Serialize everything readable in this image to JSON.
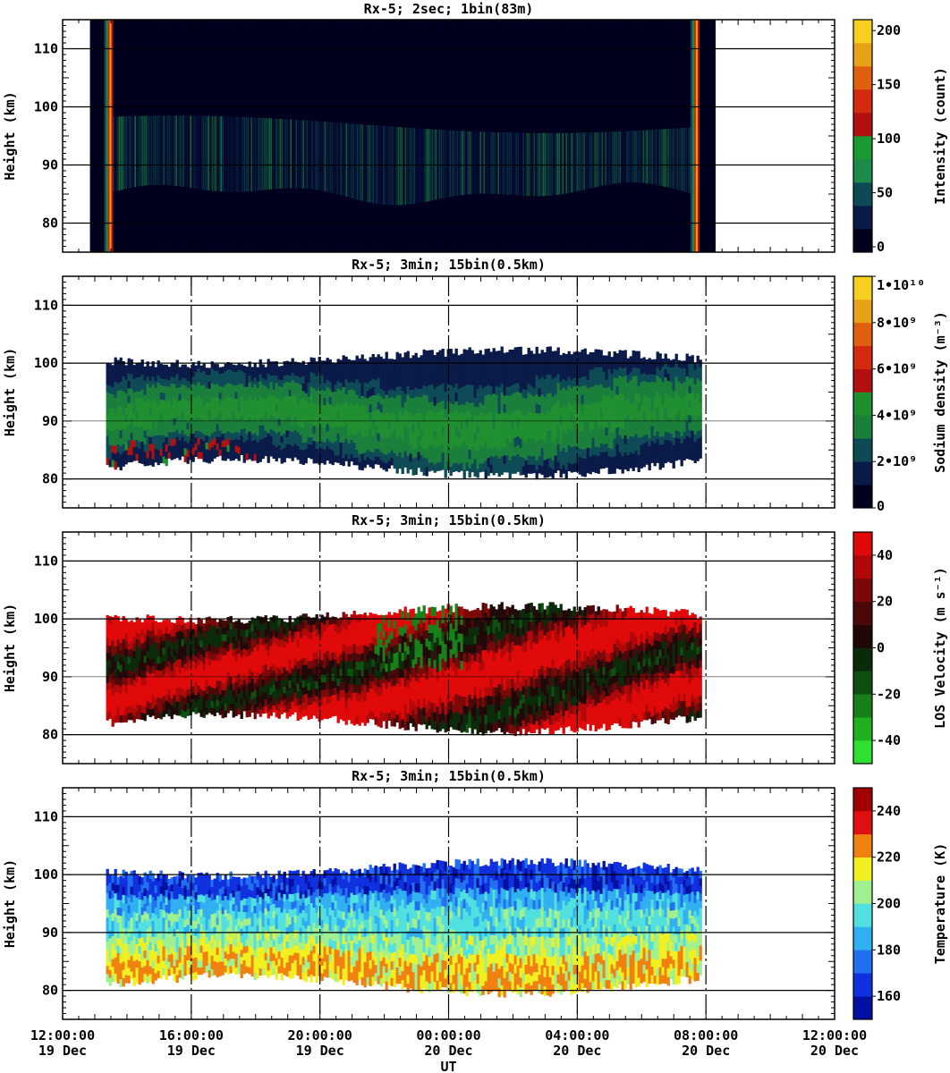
{
  "chart_data": [
    {
      "type": "heatmap",
      "title": "Rx-5;  2sec; 1bin(83m)",
      "ylabel": "Height (km)",
      "xlabel": "",
      "ylim": [
        75,
        115
      ],
      "xlim_hours": [
        12,
        36
      ],
      "yticks": [
        80,
        90,
        100,
        110
      ],
      "xticks": [
        "12:00:00|19 Dec",
        "16:00:00|19 Dec",
        "20:00:00|19 Dec",
        "00:00:00|20 Dec",
        "04:00:00|20 Dec",
        "08:00:00|20 Dec",
        "12:00:00|20 Dec"
      ],
      "grid": "horizontal",
      "colorbar": {
        "label": "Intensity (count)",
        "min": 0,
        "max": 200,
        "ticks": [
          "0",
          "50",
          "100",
          "150",
          "200"
        ],
        "colors": [
          "#00001e",
          "#0a1a48",
          "#0e4a55",
          "#1c8a48",
          "#1a9a30",
          "#b01010",
          "#d42a10",
          "#e06010",
          "#e8a018",
          "#f5d020"
        ]
      },
      "observation": {
        "start_hour": 13.35,
        "end_hour": 31.8,
        "layer_bottom_km": 85,
        "layer_top_km": 97
      }
    },
    {
      "type": "heatmap",
      "title": "Rx-5; 3min; 15bin(0.5km)",
      "ylabel": "Height (km)",
      "xlabel": "",
      "ylim": [
        75,
        115
      ],
      "yticks": [
        80,
        90,
        100,
        110
      ],
      "grid": "horizontal+vertical-dashed",
      "colorbar": {
        "label": "Sodium density (m⁻³)",
        "min": 0,
        "max": 10000000000.0,
        "ticks": [
          {
            "v": 0,
            "t": "0"
          },
          {
            "v": 0.2,
            "t": "2•10⁹"
          },
          {
            "v": 0.4,
            "t": "4•10⁹"
          },
          {
            "v": 0.6,
            "t": "6•10⁹"
          },
          {
            "v": 0.8,
            "t": "8•10⁹"
          },
          {
            "v": 1.0,
            "t": "1•10¹⁰"
          }
        ],
        "colors": [
          "#00001e",
          "#0a1a48",
          "#0e4a55",
          "#1a7f3a",
          "#1f8f30",
          "#b01010",
          "#d42a10",
          "#e06010",
          "#e8a018",
          "#f5d020"
        ]
      },
      "observation": {
        "start_hour": 13.35,
        "end_hour": 31.8,
        "layer_bottom_km": 82,
        "layer_top_km": 101
      }
    },
    {
      "type": "heatmap",
      "title": "Rx-5; 3min; 15bin(0.5km)",
      "ylabel": "Height (km)",
      "xlabel": "",
      "ylim": [
        75,
        115
      ],
      "yticks": [
        80,
        90,
        100,
        110
      ],
      "grid": "horizontal+vertical-dashed",
      "colorbar": {
        "label": "LOS Velocity (m s⁻¹)",
        "min": -50,
        "max": 50,
        "ticks": [
          {
            "v": 0.1,
            "t": "-40"
          },
          {
            "v": 0.3,
            "t": "-20"
          },
          {
            "v": 0.5,
            "t": "0"
          },
          {
            "v": 0.7,
            "t": "20"
          },
          {
            "v": 0.9,
            "t": "40"
          }
        ],
        "colors": [
          "#30e030",
          "#20b020",
          "#188018",
          "#0e5010",
          "#0a2a0a",
          "#200808",
          "#4a0808",
          "#7a0808",
          "#b00808",
          "#e00808"
        ]
      },
      "observation": {
        "start_hour": 13.35,
        "end_hour": 31.8,
        "layer_bottom_km": 82,
        "layer_top_km": 101
      }
    },
    {
      "type": "heatmap",
      "title": "Rx-5; 3min; 15bin(0.5km)",
      "ylabel": "Height (km)",
      "xlabel": "UT",
      "ylim": [
        75,
        115
      ],
      "yticks": [
        80,
        90,
        100,
        110
      ],
      "grid": "horizontal+vertical-dashed",
      "colorbar": {
        "label": "Temperature (K)",
        "min": 150,
        "max": 250,
        "ticks": [
          {
            "v": 0.1,
            "t": "160"
          },
          {
            "v": 0.3,
            "t": "180"
          },
          {
            "v": 0.5,
            "t": "200"
          },
          {
            "v": 0.7,
            "t": "220"
          },
          {
            "v": 0.9,
            "t": "240"
          }
        ],
        "colors": [
          "#0010a0",
          "#1030e0",
          "#2070f0",
          "#30b0f0",
          "#50e0e0",
          "#a0f090",
          "#f0f020",
          "#f08010",
          "#e01010",
          "#a00000"
        ]
      },
      "observation": {
        "start_hour": 13.35,
        "end_hour": 31.8,
        "layer_bottom_km": 81,
        "layer_top_km": 101
      }
    }
  ]
}
